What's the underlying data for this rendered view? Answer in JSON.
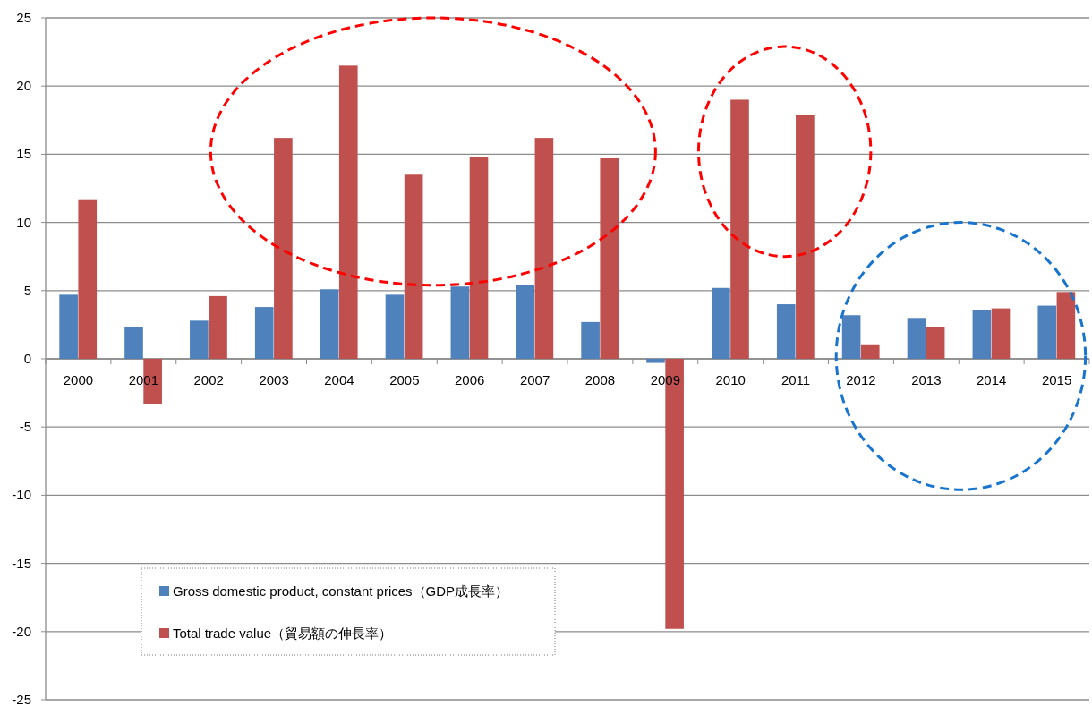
{
  "chart_data": {
    "type": "bar",
    "categories": [
      "2000",
      "2001",
      "2002",
      "2003",
      "2004",
      "2005",
      "2006",
      "2007",
      "2008",
      "2009",
      "2010",
      "2011",
      "2012",
      "2013",
      "2014",
      "2015"
    ],
    "series": [
      {
        "name": "Gross domestic product, constant prices（GDP成長率）",
        "color": "#4f81bd",
        "values": [
          4.7,
          2.3,
          2.8,
          3.8,
          5.1,
          4.7,
          5.3,
          5.4,
          2.7,
          -0.3,
          5.2,
          4.0,
          3.2,
          3.0,
          3.6,
          3.9
        ]
      },
      {
        "name": "Total trade value（貿易額の伸長率）",
        "color": "#c0504d",
        "values": [
          11.7,
          -3.3,
          4.6,
          16.2,
          21.5,
          13.5,
          14.8,
          16.2,
          14.7,
          -19.8,
          19.0,
          17.9,
          1.0,
          2.3,
          3.7,
          4.9
        ]
      }
    ],
    "ylim": [
      -25,
      25
    ],
    "yticks": [
      -25,
      -20,
      -15,
      -10,
      -5,
      0,
      5,
      10,
      15,
      20,
      25
    ],
    "grid": "y",
    "legend": "bottom left"
  }
}
